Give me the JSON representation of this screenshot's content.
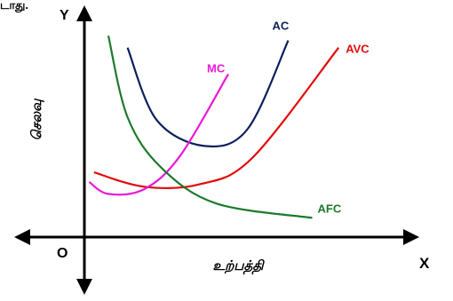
{
  "header_fragment": "டாது.",
  "chart_data": {
    "type": "line",
    "title": "",
    "xlabel": "உற்பத்தி",
    "ylabel": "செலவு",
    "axis_letters": {
      "x": "X",
      "y": "Y",
      "origin": "O"
    },
    "grid": false,
    "series": [
      {
        "name": "AC",
        "color": "#0b1f5c",
        "label_color": "#0b1f5c",
        "x": [
          1.8,
          3.0,
          5.0,
          6.8,
          8.5
        ],
        "y": [
          7.9,
          4.9,
          3.8,
          4.5,
          8.2
        ]
      },
      {
        "name": "AVC",
        "color": "#e10b0b",
        "label_color": "#e10b0b",
        "x": [
          0.4,
          2.5,
          4.8,
          7.0,
          10.6
        ],
        "y": [
          2.7,
          2.1,
          2.2,
          3.3,
          7.9
        ]
      },
      {
        "name": "MC",
        "color": "#e81ad8",
        "label_color": "#e81ad8",
        "x": [
          0.2,
          1.0,
          2.5,
          4.0,
          6.0
        ],
        "y": [
          2.3,
          1.8,
          2.0,
          3.4,
          6.8
        ]
      },
      {
        "name": "AFC",
        "color": "#1d7a2b",
        "label_color": "#1d7a2b",
        "x": [
          1.0,
          1.8,
          3.2,
          5.5,
          9.5
        ],
        "y": [
          8.4,
          5.0,
          2.9,
          1.4,
          0.8
        ]
      }
    ]
  }
}
